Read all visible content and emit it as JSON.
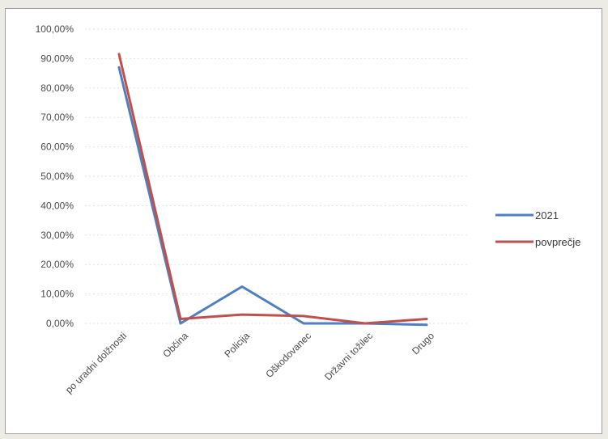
{
  "chart_data": {
    "type": "line",
    "categories": [
      "po uradni dolžnosti",
      "Občina",
      "Policija",
      "Oškodovanec",
      "Državni tožilec",
      "Drugo"
    ],
    "series": [
      {
        "name": "2021",
        "color": "#4f7fc0",
        "values": [
          87,
          0,
          12.5,
          0,
          0,
          -0.5
        ]
      },
      {
        "name": "povprečje",
        "color": "#c1504d",
        "values": [
          91.5,
          1.5,
          3,
          2.5,
          0,
          1.5
        ]
      }
    ],
    "y_ticks": [
      "0,00%",
      "10,00%",
      "20,00%",
      "30,00%",
      "40,00%",
      "50,00%",
      "60,00%",
      "70,00%",
      "80,00%",
      "90,00%",
      "100,00%"
    ],
    "ylim": [
      0,
      100
    ],
    "grid": true,
    "legend_position": "right"
  }
}
